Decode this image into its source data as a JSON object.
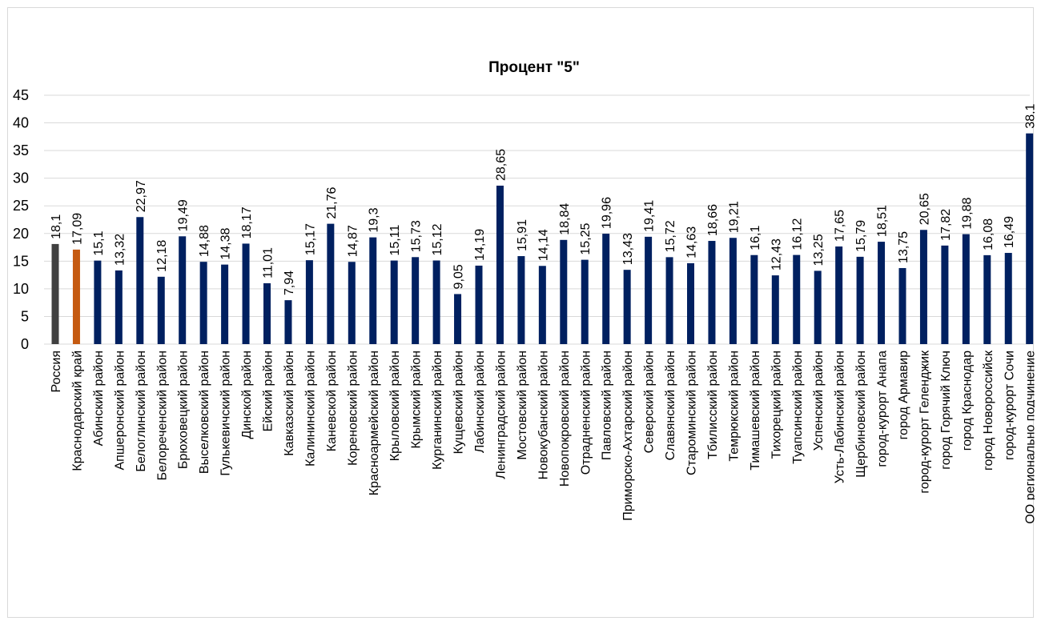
{
  "chart_data": {
    "type": "bar",
    "title": "Процент \"5\"",
    "xlabel": "",
    "ylabel": "",
    "ylim": [
      0,
      45
    ],
    "yticks": [
      "0",
      "5",
      "10",
      "15",
      "20",
      "25",
      "30",
      "35",
      "40",
      "45"
    ],
    "grid": true,
    "legend": "none",
    "colors": {
      "default": "#002060",
      "highlight_0": "#404040",
      "highlight_1": "#C55A11"
    },
    "categories": [
      "Россия",
      "Краснодарский край",
      "Абинский район",
      "Апшеронский район",
      "Белоглинский район",
      "Белореченский район",
      "Брюховецкий район",
      "Выселковский район",
      "Гулькевичский район",
      "Динской район",
      "Ейский район",
      "Кавказский район",
      "Калининский район",
      "Каневской район",
      "Кореновский район",
      "Красноармейский район",
      "Крыловский район",
      "Крымский район",
      "Курганинский район",
      "Кущевский район",
      "Лабинский район",
      "Ленинградский район",
      "Мостовский район",
      "Новокубанский район",
      "Новопокровский район",
      "Отрадненский район",
      "Павловский район",
      "Приморско-Ахтарский район",
      "Северский район",
      "Славянский район",
      "Староминский район",
      "Тбилисский район",
      "Темрюкский район",
      "Тимашевский район",
      "Тихорецкий район",
      "Туапсинский район",
      "Успенский район",
      "Усть-Лабинский район",
      "Щербиновский район",
      "город-курорт Анапа",
      "город Армавир",
      "город-курорт Геленджик",
      "город Горячий Ключ",
      "город Краснодар",
      "город Новороссийск",
      "город-курорт Сочи",
      "ОО регионально подчинение"
    ],
    "values": [
      18.1,
      17.09,
      15.1,
      13.32,
      22.97,
      12.18,
      19.49,
      14.88,
      14.38,
      18.17,
      11.01,
      7.94,
      15.17,
      21.76,
      14.87,
      19.3,
      15.11,
      15.73,
      15.12,
      9.05,
      14.19,
      28.65,
      15.91,
      14.14,
      18.84,
      15.25,
      19.96,
      13.43,
      19.41,
      15.72,
      14.63,
      18.66,
      19.21,
      16.1,
      12.43,
      16.12,
      13.25,
      17.65,
      15.79,
      18.51,
      13.75,
      20.65,
      17.82,
      19.88,
      16.08,
      16.49,
      38.1
    ],
    "data_labels": [
      "18,1",
      "17,09",
      "15,1",
      "13,32",
      "22,97",
      "12,18",
      "19,49",
      "14,88",
      "14,38",
      "18,17",
      "11,01",
      "7,94",
      "15,17",
      "21,76",
      "14,87",
      "19,3",
      "15,11",
      "15,73",
      "15,12",
      "9,05",
      "14,19",
      "28,65",
      "15,91",
      "14,14",
      "18,84",
      "15,25",
      "19,96",
      "13,43",
      "19,41",
      "15,72",
      "14,63",
      "18,66",
      "19,21",
      "16,1",
      "12,43",
      "16,12",
      "13,25",
      "17,65",
      "15,79",
      "18,51",
      "13,75",
      "20,65",
      "17,82",
      "19,88",
      "16,08",
      "16,49",
      "38,1"
    ]
  }
}
